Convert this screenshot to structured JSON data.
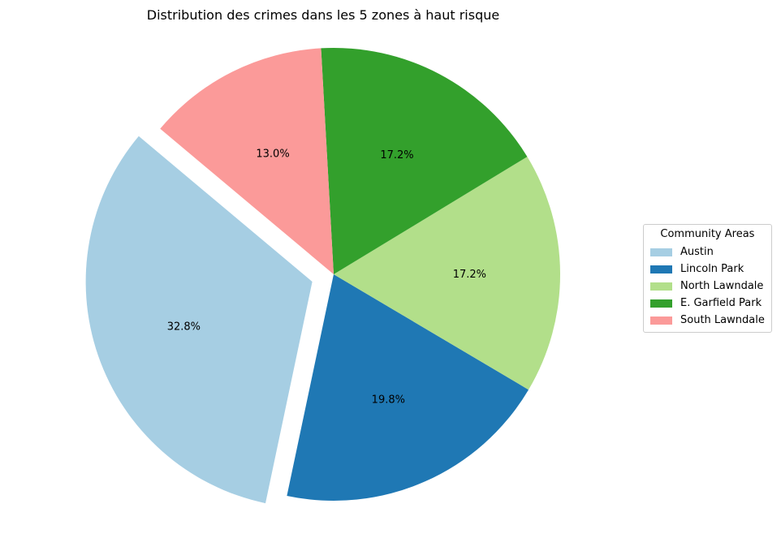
{
  "chart_data": {
    "type": "pie",
    "title": "Distribution des crimes dans les 5 zones à haut risque",
    "legend_title": "Community Areas",
    "legend_placement": "right",
    "start_angle_deg": 140,
    "direction": "counterclockwise",
    "explode": [
      0.1,
      0,
      0,
      0,
      0
    ],
    "slices": [
      {
        "label": "Austin",
        "percent": 32.8,
        "label_text": "32.8%",
        "color": "#a6cee3"
      },
      {
        "label": "Lincoln Park",
        "percent": 19.8,
        "label_text": "19.8%",
        "color": "#1f78b4"
      },
      {
        "label": "North Lawndale",
        "percent": 17.2,
        "label_text": "17.2%",
        "color": "#b2df8a"
      },
      {
        "label": "E. Garfield Park",
        "percent": 17.2,
        "label_text": "17.2%",
        "color": "#33a02c"
      },
      {
        "label": "South Lawndale",
        "percent": 13.0,
        "label_text": "13.0%",
        "color": "#fb9a99"
      }
    ]
  }
}
